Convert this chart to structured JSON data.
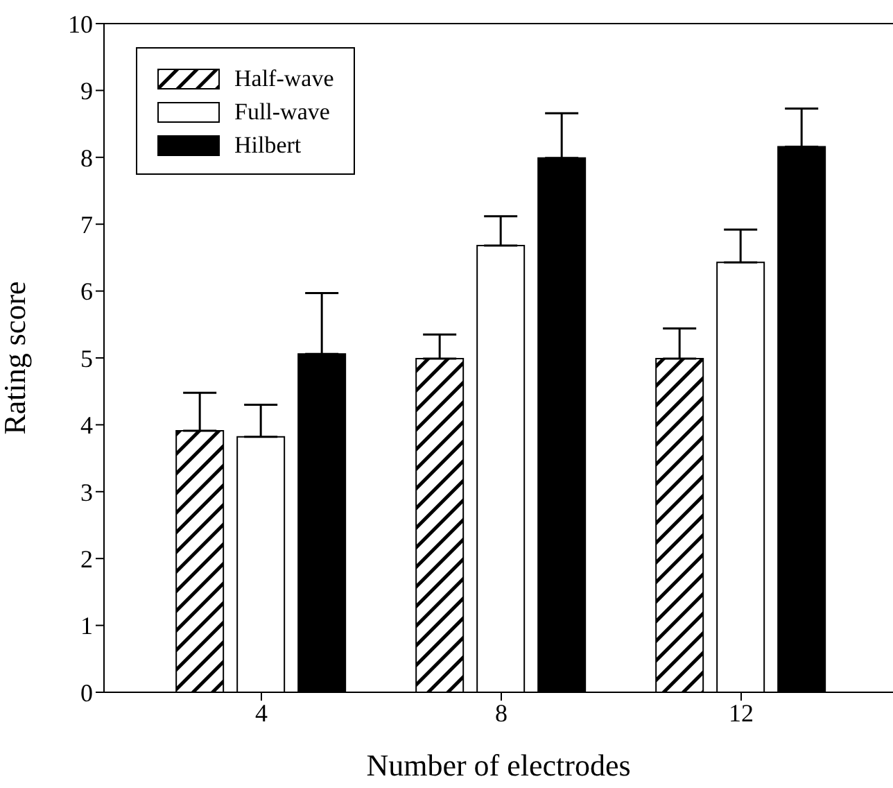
{
  "chart_data": {
    "type": "bar",
    "xlabel": "Number of electrodes",
    "ylabel": "Rating score",
    "categories": [
      "4",
      "8",
      "12"
    ],
    "series": [
      {
        "name": "Half-wave",
        "color": "#000000",
        "values": [
          3.91,
          4.99,
          4.99
        ],
        "errors": [
          0.57,
          0.36,
          0.45
        ]
      },
      {
        "name": "Full-wave",
        "color": "#ffffff",
        "values": [
          3.82,
          6.68,
          6.43
        ],
        "errors": [
          0.48,
          0.44,
          0.49
        ]
      },
      {
        "name": "Hilbert",
        "color": "#000000",
        "values": [
          5.06,
          7.99,
          8.16
        ],
        "errors": [
          0.91,
          0.67,
          0.57
        ]
      }
    ],
    "ylim": [
      0,
      10
    ],
    "yticks": [
      0,
      1,
      2,
      3,
      4,
      5,
      6,
      7,
      8,
      9,
      10
    ],
    "grid": false,
    "legend": "top left"
  }
}
